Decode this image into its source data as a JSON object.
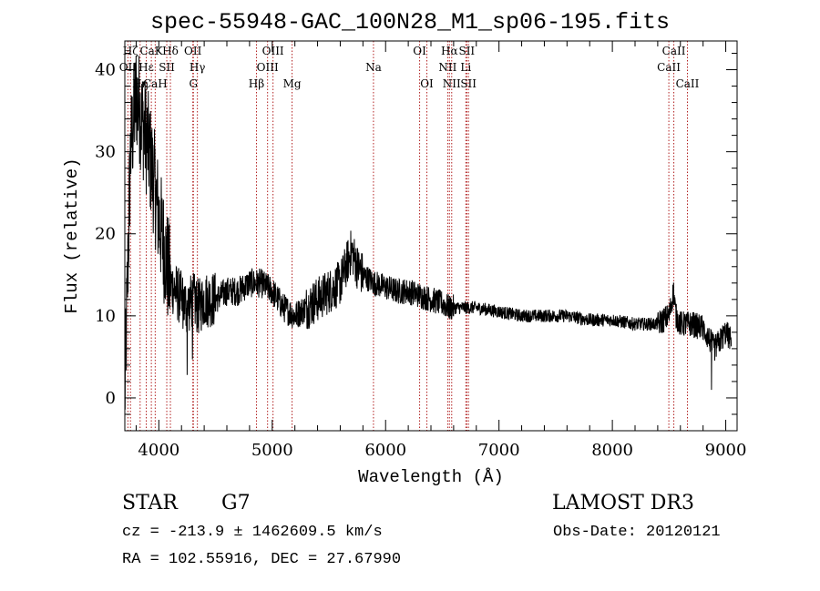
{
  "title": "spec-55948-GAC_100N28_M1_sp06-195.fits",
  "footer": {
    "object_class": "STAR",
    "subclass": "G7",
    "survey": "LAMOST DR3",
    "redshift": "cz = -213.9 ± 1462609.5 km/s",
    "obs_date": "Obs-Date: 20120121",
    "coords": "RA = 102.55916, DEC =  27.67990"
  },
  "colors": {
    "line_marker": "#b22222",
    "spectrum": "#000000",
    "axes": "#000000"
  },
  "chart_data": {
    "type": "line",
    "xlabel": "Wavelength (Å)",
    "ylabel": "Flux (relative)",
    "xlim": [
      3700,
      9100
    ],
    "ylim": [
      -4,
      43.5
    ],
    "xticks": [
      4000,
      5000,
      6000,
      7000,
      8000,
      9000
    ],
    "yticks": [
      0,
      10,
      20,
      30,
      40
    ],
    "series": [
      {
        "name": "spectrum",
        "x": [
          3700,
          3750,
          3800,
          3850,
          3900,
          3950,
          4000,
          4050,
          4100,
          4150,
          4200,
          4250,
          4300,
          4350,
          4400,
          4450,
          4500,
          4600,
          4700,
          4800,
          4900,
          5000,
          5100,
          5200,
          5300,
          5400,
          5500,
          5600,
          5650,
          5700,
          5750,
          5800,
          5900,
          6000,
          6100,
          6200,
          6300,
          6400,
          6500,
          6560,
          6600,
          6700,
          6800,
          7000,
          7200,
          7400,
          7600,
          7800,
          8000,
          8200,
          8400,
          8500,
          8540,
          8560,
          8600,
          8700,
          8800,
          8900,
          9000,
          9050
        ],
        "y": [
          0,
          30,
          37,
          34,
          31,
          27,
          22,
          18,
          14,
          13,
          12,
          11,
          12,
          11,
          12,
          12,
          12,
          13,
          13,
          14,
          14,
          13,
          11,
          10,
          11,
          12,
          13,
          14,
          16,
          18,
          16,
          15,
          14,
          13.5,
          13,
          13,
          12.5,
          12,
          11.5,
          11,
          11,
          11,
          11,
          10.5,
          10,
          10,
          10,
          9.5,
          9.5,
          9,
          9,
          10,
          13,
          10,
          9,
          9,
          8.5,
          6,
          8,
          7
        ]
      }
    ],
    "line_markers": [
      {
        "label": "Hζ",
        "wavelength": 3750,
        "row": 0
      },
      {
        "label": "CaK",
        "wavelength": 3934,
        "row": 0
      },
      {
        "label": "Hδ",
        "wavelength": 4102,
        "row": 0
      },
      {
        "label": "OII",
        "wavelength": 4300,
        "row": 0
      },
      {
        "label": "OIII",
        "wavelength": 5007,
        "row": 0
      },
      {
        "label": "OI",
        "wavelength": 6300,
        "row": 0
      },
      {
        "label": "Hα",
        "wavelength": 6563,
        "row": 0
      },
      {
        "label": "SII",
        "wavelength": 6716,
        "row": 0
      },
      {
        "label": "CaII",
        "wavelength": 8542,
        "row": 0
      },
      {
        "label": "OII",
        "wavelength": 3727,
        "row": 1
      },
      {
        "label": "Hε",
        "wavelength": 3889,
        "row": 1
      },
      {
        "label": "SII",
        "wavelength": 4070,
        "row": 1
      },
      {
        "label": "Hγ",
        "wavelength": 4340,
        "row": 1
      },
      {
        "label": "OIII",
        "wavelength": 4959,
        "row": 1
      },
      {
        "label": "Na",
        "wavelength": 5893,
        "row": 1
      },
      {
        "label": "NII",
        "wavelength": 6548,
        "row": 1
      },
      {
        "label": "Li",
        "wavelength": 6708,
        "row": 1
      },
      {
        "label": "CaII",
        "wavelength": 8498,
        "row": 1
      },
      {
        "label": "Hη",
        "wavelength": 3835,
        "row": 2
      },
      {
        "label": "CaH",
        "wavelength": 3968,
        "row": 2
      },
      {
        "label": "G",
        "wavelength": 4305,
        "row": 2
      },
      {
        "label": "Hβ",
        "wavelength": 4861,
        "row": 2
      },
      {
        "label": "Mg",
        "wavelength": 5175,
        "row": 2
      },
      {
        "label": "OI",
        "wavelength": 6364,
        "row": 2
      },
      {
        "label": "NII",
        "wavelength": 6583,
        "row": 2
      },
      {
        "label": "SII",
        "wavelength": 6731,
        "row": 2
      },
      {
        "label": "CaII",
        "wavelength": 8662,
        "row": 2
      }
    ]
  }
}
